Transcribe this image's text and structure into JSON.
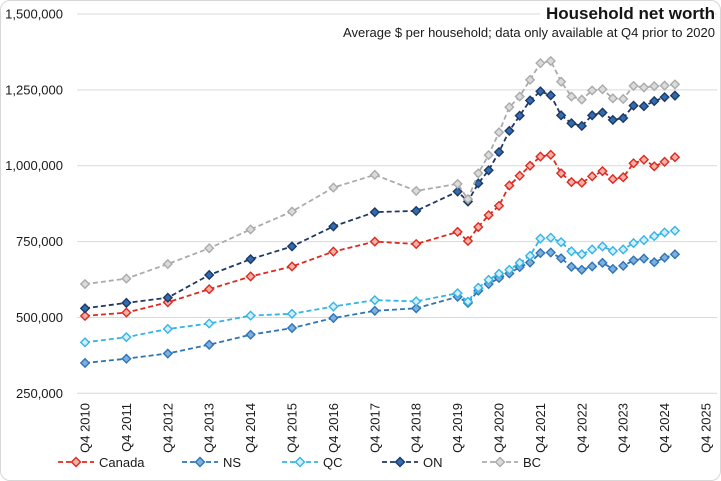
{
  "chart_data": {
    "type": "line",
    "title": "Household net worth",
    "subtitle": "Average $ per household; data only available at Q4 prior to 2020",
    "xlabel": "",
    "ylabel": "",
    "ylim": [
      250000,
      1500000
    ],
    "y_tick_interval": 250000,
    "y_axis_tick_labels": [
      "250,000",
      "500,000",
      "750,000",
      "1,000,000",
      "1,250,000",
      "1,500,000"
    ],
    "x_axis_tick_labels": [
      "Q4 2010",
      "Q4 2011",
      "Q4 2012",
      "Q4 2013",
      "Q4 2014",
      "Q4 2015",
      "Q4 2016",
      "Q4 2017",
      "Q4 2018",
      "Q4 2019",
      "Q4 2020",
      "Q4 2021",
      "Q4 2022",
      "Q4 2023",
      "Q4 2024",
      "Q4 2025"
    ],
    "grid": "horizontal",
    "gridline_color": "#d9d9d9",
    "legend_position": "bottom",
    "categories": [
      "Q4 2010",
      "Q4 2011",
      "Q4 2012",
      "Q4 2013",
      "Q4 2014",
      "Q4 2015",
      "Q4 2016",
      "Q4 2017",
      "Q4 2018",
      "Q4 2019",
      "Q1 2020",
      "Q2 2020",
      "Q3 2020",
      "Q4 2020",
      "Q1 2021",
      "Q2 2021",
      "Q3 2021",
      "Q4 2021",
      "Q1 2022",
      "Q2 2022",
      "Q3 2022",
      "Q4 2022",
      "Q1 2023",
      "Q2 2023",
      "Q3 2023",
      "Q4 2023",
      "Q1 2024",
      "Q2 2024",
      "Q3 2024",
      "Q4 2024",
      "Q1 2025"
    ],
    "quarter_offsets": [
      0,
      4,
      8,
      12,
      16,
      20,
      24,
      28,
      32,
      36,
      37,
      38,
      39,
      40,
      41,
      42,
      43,
      44,
      45,
      46,
      47,
      48,
      49,
      50,
      51,
      52,
      53,
      54,
      55,
      56,
      57
    ],
    "series": [
      {
        "name": "Canada",
        "line_color": "#dd2a1e",
        "marker_fill": "#f3b0a9",
        "values": [
          505000,
          516000,
          550000,
          593000,
          635000,
          668000,
          717000,
          750000,
          742000,
          782000,
          752000,
          798000,
          837000,
          868000,
          935000,
          967000,
          1000000,
          1030000,
          1036000,
          975000,
          946000,
          944000,
          965000,
          982000,
          956000,
          962000,
          1008000,
          1020000,
          998000,
          1013000,
          1028000
        ]
      },
      {
        "name": "NS",
        "line_color": "#2e75b6",
        "marker_fill": "#7fafdc",
        "values": [
          350000,
          364000,
          381000,
          410000,
          443000,
          465000,
          498000,
          522000,
          530000,
          568000,
          548000,
          588000,
          610000,
          630000,
          645000,
          666000,
          681000,
          712000,
          714000,
          695000,
          667000,
          657000,
          668000,
          680000,
          660000,
          670000,
          688000,
          694000,
          682000,
          697000,
          708000
        ]
      },
      {
        "name": "QC",
        "line_color": "#35b4e8",
        "marker_fill": "#d2eefa",
        "values": [
          418000,
          435000,
          462000,
          480000,
          506000,
          512000,
          536000,
          557000,
          553000,
          580000,
          552000,
          598000,
          624000,
          644000,
          657000,
          680000,
          703000,
          760000,
          763000,
          748000,
          718000,
          708000,
          724000,
          734000,
          719000,
          724000,
          745000,
          755000,
          768000,
          780000,
          786000
        ]
      },
      {
        "name": "ON",
        "line_color": "#1f3864",
        "marker_fill": "#2f6db2",
        "values": [
          530000,
          548000,
          565000,
          640000,
          692000,
          734000,
          800000,
          847000,
          851000,
          915000,
          882000,
          942000,
          985000,
          1045000,
          1115000,
          1165000,
          1215000,
          1245000,
          1232000,
          1166000,
          1140000,
          1131000,
          1166000,
          1175000,
          1151000,
          1157000,
          1198000,
          1196000,
          1213000,
          1226000,
          1231000
        ]
      },
      {
        "name": "BC",
        "line_color": "#ababab",
        "marker_fill": "#dbdbdb",
        "values": [
          610000,
          628000,
          676000,
          728000,
          790000,
          849000,
          928000,
          970000,
          917000,
          940000,
          890000,
          975000,
          1035000,
          1110000,
          1193000,
          1228000,
          1283000,
          1338000,
          1345000,
          1277000,
          1228000,
          1218000,
          1248000,
          1252000,
          1222000,
          1220000,
          1263000,
          1258000,
          1262000,
          1264000,
          1268000
        ]
      }
    ]
  }
}
